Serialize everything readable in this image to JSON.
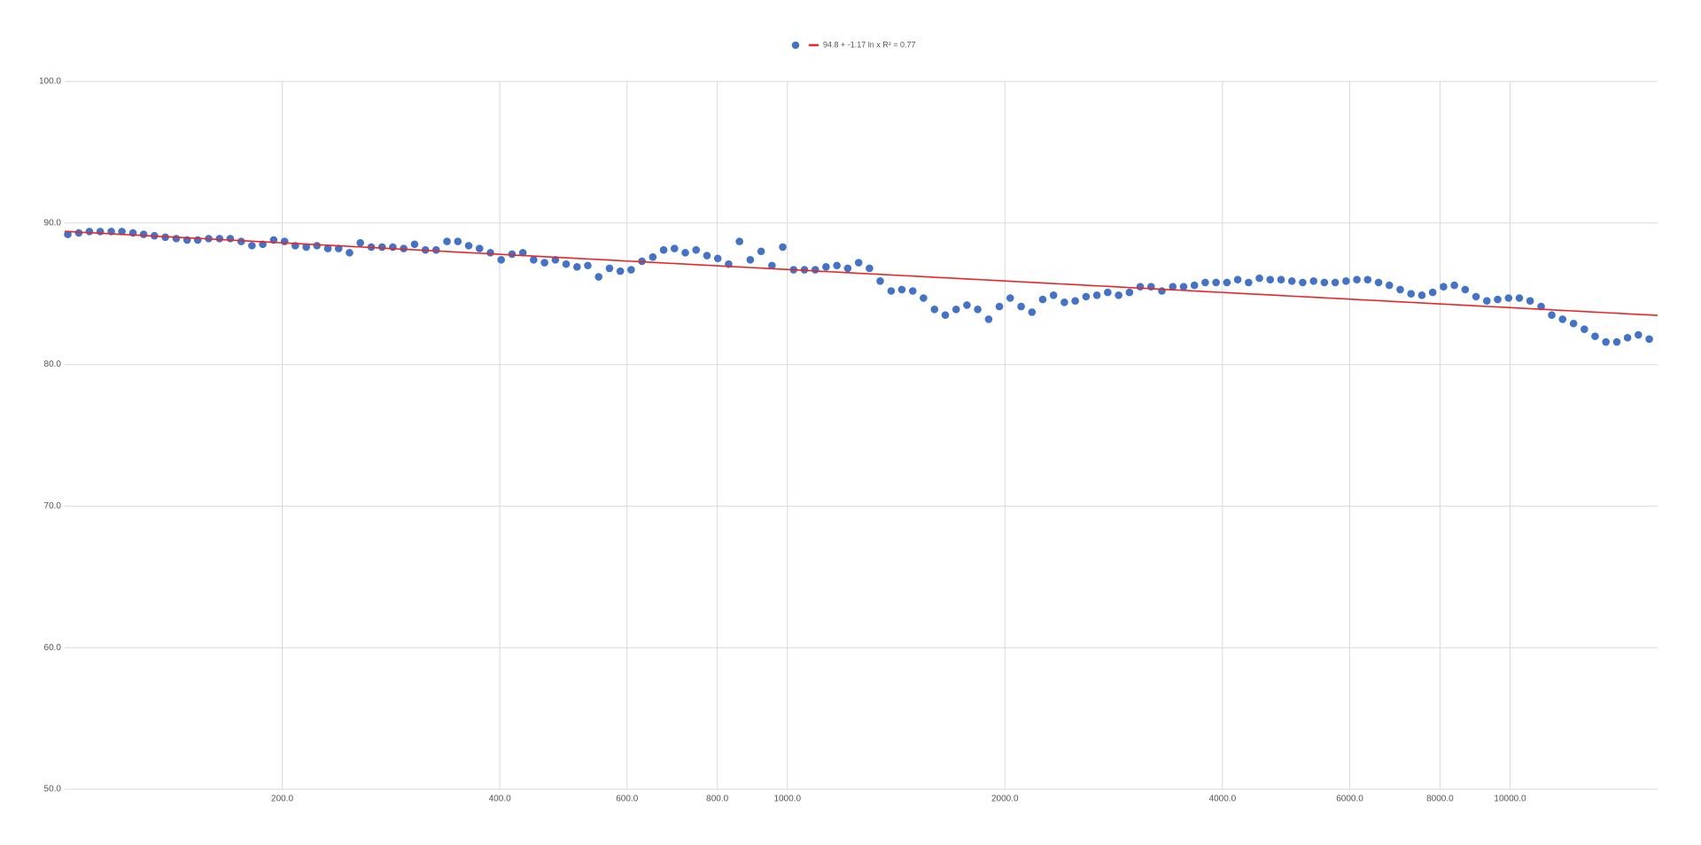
{
  "chart_data": {
    "type": "scatter",
    "xscale": "log",
    "grid": true,
    "legend_position": "top",
    "xlim": [
      100,
      16000
    ],
    "ylim": [
      50,
      100
    ],
    "xticks": [
      {
        "value": 200,
        "label": "200.0"
      },
      {
        "value": 400,
        "label": "400.0"
      },
      {
        "value": 600,
        "label": "600.0"
      },
      {
        "value": 800,
        "label": "800.0"
      },
      {
        "value": 1000,
        "label": "1000.0"
      },
      {
        "value": 2000,
        "label": "2000.0"
      },
      {
        "value": 4000,
        "label": "4000.0"
      },
      {
        "value": 6000,
        "label": "6000.0"
      },
      {
        "value": 8000,
        "label": "8000.0"
      },
      {
        "value": 10000,
        "label": "10000.0"
      }
    ],
    "yticks": [
      {
        "value": 50,
        "label": "50.0"
      },
      {
        "value": 60,
        "label": "60.0"
      },
      {
        "value": 70,
        "label": "70.0"
      },
      {
        "value": 80,
        "label": "80.0"
      },
      {
        "value": 90,
        "label": "90.0"
      },
      {
        "value": 100,
        "label": "100.0"
      }
    ],
    "series": [
      {
        "color": "#4472c4",
        "x": [
          101.0,
          104.6,
          108.2,
          112.0,
          116.0,
          120.0,
          124.3,
          128.6,
          133.1,
          137.8,
          142.7,
          147.7,
          152.8,
          158.2,
          163.8,
          169.5,
          175.5,
          181.6,
          188.0,
          194.6,
          201.5,
          208.5,
          215.9,
          223.4,
          231.3,
          239.4,
          247.8,
          256.5,
          265.6,
          274.9,
          284.5,
          294.5,
          304.9,
          315.6,
          326.6,
          338.1,
          350.0,
          362.3,
          375.0,
          388.2,
          401.8,
          415.9,
          430.5,
          445.6,
          461.3,
          477.5,
          494.2,
          511.6,
          529.5,
          548.1,
          567.4,
          587.3,
          607.9,
          629.2,
          651.3,
          674.2,
          697.9,
          722.4,
          747.7,
          774.0,
          801.1,
          829.3,
          858.4,
          888.5,
          919.7,
          952.0,
          985.4,
          1020,
          1056,
          1093,
          1131,
          1171,
          1212,
          1255,
          1299,
          1344,
          1392,
          1440,
          1491,
          1543,
          1598,
          1654,
          1712,
          1772,
          1834,
          1899,
          1965,
          2034,
          2106,
          2180,
          2256,
          2335,
          2417,
          2502,
          2590,
          2681,
          2775,
          2873,
          2974,
          3078,
          3186,
          3298,
          3414,
          3534,
          3658,
          3786,
          3919,
          4057,
          4199,
          4347,
          4499,
          4657,
          4821,
          4990,
          5165,
          5347,
          5534,
          5729,
          5930,
          6138,
          6353,
          6577,
          6807,
          7046,
          7294,
          7550,
          7815,
          8090,
          8374,
          8668,
          8972,
          9287,
          9613,
          9951,
          10300,
          10660,
          11040,
          11420,
          11820,
          12240,
          12670,
          13110,
          13570,
          14050,
          14540,
          15050,
          15580
        ],
        "values": [
          89.2,
          89.3,
          89.4,
          89.4,
          89.4,
          89.4,
          89.3,
          89.2,
          89.1,
          89.0,
          88.9,
          88.8,
          88.8,
          88.9,
          88.9,
          88.9,
          88.7,
          88.4,
          88.5,
          88.8,
          88.7,
          88.4,
          88.3,
          88.4,
          88.2,
          88.2,
          87.9,
          88.6,
          88.3,
          88.3,
          88.3,
          88.2,
          88.5,
          88.1,
          88.1,
          88.7,
          88.7,
          88.4,
          88.2,
          87.9,
          87.4,
          87.8,
          87.9,
          87.4,
          87.2,
          87.4,
          87.1,
          86.9,
          87.0,
          86.2,
          86.8,
          86.6,
          86.7,
          87.3,
          87.6,
          88.1,
          88.2,
          87.9,
          88.1,
          87.7,
          87.5,
          87.1,
          88.7,
          87.4,
          88.0,
          87.0,
          88.3,
          86.7,
          86.7,
          86.7,
          86.9,
          87.0,
          86.8,
          87.2,
          86.8,
          85.9,
          85.2,
          85.3,
          85.2,
          84.7,
          83.9,
          83.5,
          83.9,
          84.2,
          83.9,
          83.2,
          84.1,
          84.7,
          84.1,
          83.7,
          84.6,
          84.9,
          84.4,
          84.5,
          84.8,
          84.9,
          85.1,
          84.9,
          85.1,
          85.5,
          85.5,
          85.2,
          85.5,
          85.5,
          85.6,
          85.8,
          85.8,
          85.8,
          86.0,
          85.8,
          86.1,
          86.0,
          86.0,
          85.9,
          85.8,
          85.9,
          85.8,
          85.8,
          85.9,
          86.0,
          86.0,
          85.8,
          85.6,
          85.3,
          85.0,
          84.9,
          85.1,
          85.5,
          85.6,
          85.3,
          84.8,
          84.5,
          84.6,
          84.7,
          84.7,
          84.5,
          84.1,
          83.5,
          83.2,
          82.9,
          82.5,
          82.0,
          81.6,
          81.6,
          81.9,
          82.1,
          81.8
        ]
      }
    ],
    "trendline": {
      "type": "logarithmic",
      "label": "94.8 + -1.17 ln x R² = 0.77",
      "intercept": 94.8,
      "slope": -1.17,
      "color": "#e8262a"
    }
  }
}
